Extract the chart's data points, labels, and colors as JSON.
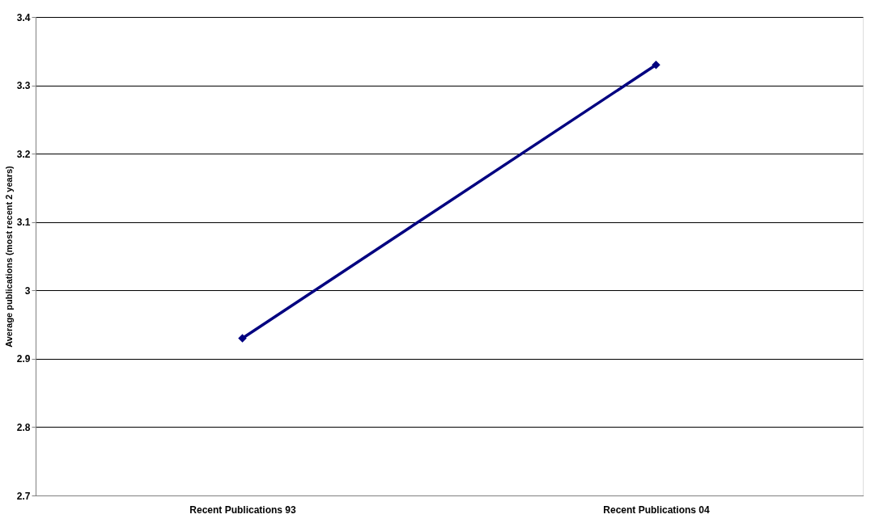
{
  "chart_data": {
    "type": "line",
    "ylabel": "Average publications (most recent 2 years)",
    "categories": [
      "Recent Publications 93",
      "Recent Publications 04"
    ],
    "series": [
      {
        "color": "#000080",
        "values": [
          2.93,
          3.33
        ]
      }
    ],
    "ylim": [
      2.7,
      3.4
    ],
    "yticks": [
      2.7,
      2.8,
      2.9,
      3,
      3.1,
      3.2,
      3.3,
      3.4
    ],
    "grid": "y",
    "marker": "diamond",
    "line_style": "solid",
    "legend": false
  }
}
